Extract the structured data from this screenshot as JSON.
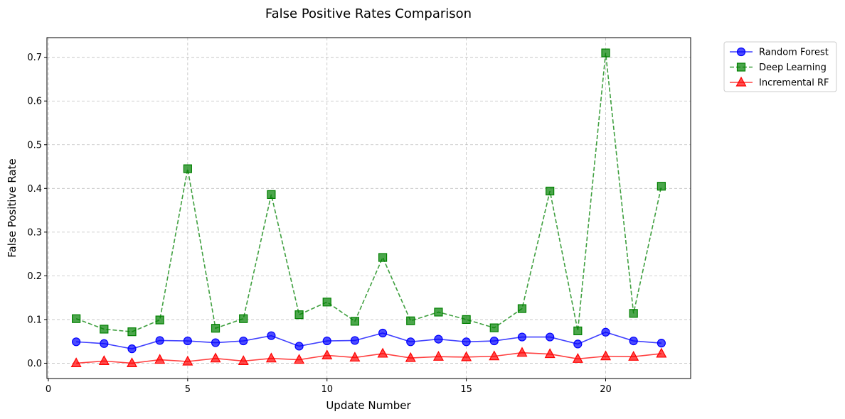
{
  "chart_data": {
    "type": "line",
    "title": "False Positive Rates Comparison",
    "xlabel": "Update Number",
    "ylabel": "False Positive Rate",
    "xlim": [
      -0.05,
      23.05
    ],
    "ylim": [
      -0.035,
      0.745
    ],
    "xticks": [
      0,
      5,
      10,
      15,
      20
    ],
    "yticks": [
      0.0,
      0.1,
      0.2,
      0.3,
      0.4,
      0.5,
      0.6,
      0.7
    ],
    "grid": true,
    "legend_position": "outside-top-right",
    "x": [
      1,
      2,
      3,
      4,
      5,
      6,
      7,
      8,
      9,
      10,
      11,
      12,
      13,
      14,
      15,
      16,
      17,
      18,
      19,
      20,
      21,
      22
    ],
    "series": [
      {
        "name": "Random Forest",
        "color": "#0000ff",
        "marker": "circle",
        "linestyle": "solid",
        "values": [
          0.049,
          0.045,
          0.033,
          0.052,
          0.051,
          0.047,
          0.051,
          0.063,
          0.039,
          0.051,
          0.052,
          0.069,
          0.049,
          0.055,
          0.049,
          0.051,
          0.06,
          0.06,
          0.044,
          0.071,
          0.051,
          0.046
        ]
      },
      {
        "name": "Deep Learning",
        "color": "#008000",
        "marker": "square",
        "linestyle": "dashed",
        "values": [
          0.102,
          0.078,
          0.072,
          0.099,
          0.445,
          0.08,
          0.102,
          0.386,
          0.111,
          0.14,
          0.096,
          0.242,
          0.097,
          0.117,
          0.1,
          0.081,
          0.125,
          0.394,
          0.074,
          0.71,
          0.114,
          0.405
        ]
      },
      {
        "name": "Incremental RF",
        "color": "#ff0000",
        "marker": "triangle",
        "linestyle": "solid",
        "values": [
          0.0,
          0.005,
          0.0,
          0.008,
          0.004,
          0.011,
          0.005,
          0.011,
          0.008,
          0.018,
          0.013,
          0.022,
          0.012,
          0.015,
          0.014,
          0.016,
          0.024,
          0.021,
          0.01,
          0.016,
          0.015,
          0.022
        ]
      }
    ]
  }
}
